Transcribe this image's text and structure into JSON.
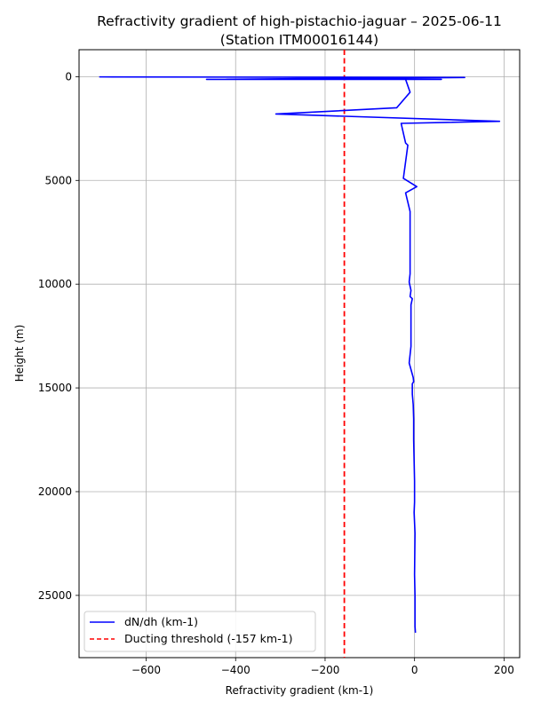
{
  "chart_data": {
    "type": "line",
    "title": "Refractivity gradient of high-pistachio-jaguar – 2025-06-11",
    "subtitle": "(Station ITM00016144)",
    "xlabel": "Refractivity gradient (km-1)",
    "ylabel": "Height (m)",
    "xlim": [
      -750,
      235
    ],
    "ylim": [
      28000,
      -1300
    ],
    "y_inverted": true,
    "grid": true,
    "legend_position": "lower left",
    "x_ticks": [
      -600,
      -400,
      -200,
      0,
      200
    ],
    "y_ticks": [
      0,
      5000,
      10000,
      15000,
      20000,
      25000
    ],
    "x_tick_labels": [
      "−600",
      "−400",
      "−200",
      "0",
      "200"
    ],
    "y_tick_labels": [
      "0",
      "5000",
      "10000",
      "15000",
      "20000",
      "25000"
    ],
    "series": [
      {
        "name": "dN/dh (km-1)",
        "color": "#0000ff",
        "style": "solid",
        "points": [
          [
            -705,
            10
          ],
          [
            112,
            40
          ],
          [
            -465,
            130
          ],
          [
            60,
            130
          ],
          [
            -20,
            130
          ],
          [
            -10,
            750
          ],
          [
            -40,
            1500
          ],
          [
            -310,
            1800
          ],
          [
            190,
            2150
          ],
          [
            -30,
            2250
          ],
          [
            -20,
            3200
          ],
          [
            -15,
            3300
          ],
          [
            -25,
            4900
          ],
          [
            5,
            5300
          ],
          [
            -20,
            5600
          ],
          [
            -10,
            6500
          ],
          [
            -10,
            9500
          ],
          [
            -12,
            9900
          ],
          [
            -8,
            10300
          ],
          [
            -10,
            10600
          ],
          [
            -5,
            10700
          ],
          [
            -8,
            11000
          ],
          [
            -8,
            13000
          ],
          [
            -12,
            13800
          ],
          [
            -3,
            14500
          ],
          [
            -2,
            14700
          ],
          [
            -5,
            14800
          ],
          [
            -5,
            15300
          ],
          [
            -3,
            15800
          ],
          [
            -2,
            16500
          ],
          [
            -2,
            17500
          ],
          [
            0,
            19500
          ],
          [
            0,
            20500
          ],
          [
            -1,
            21000
          ],
          [
            1,
            22000
          ],
          [
            0,
            24000
          ],
          [
            1,
            25000
          ],
          [
            1,
            26500
          ],
          [
            2,
            26800
          ]
        ]
      },
      {
        "name": "Ducting threshold (-157 km-1)",
        "color": "#ff0000",
        "style": "dashed",
        "vertical_line_x": -157
      }
    ]
  }
}
